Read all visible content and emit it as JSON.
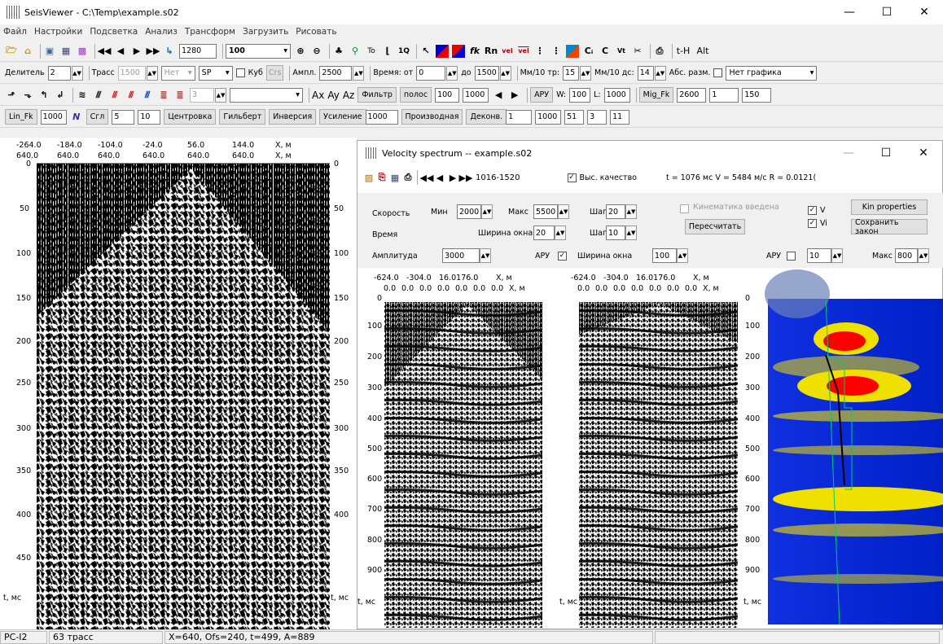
{
  "window": {
    "title": "SeisViewer - C:\\Temp\\example.s02"
  },
  "menu": [
    "Файл",
    "Настройки",
    "Подсветка",
    "Анализ",
    "Трансформ",
    "Загрузить",
    "Рисовать"
  ],
  "toolbar1": {
    "trace_no": "1280",
    "zoom": "100",
    "letters": [
      "To",
      "1Q",
      "fk",
      "Rn",
      "vel",
      "vel",
      "Cᵢ",
      "C",
      "Alt"
    ],
    "tH": "t-H"
  },
  "toolbar2": {
    "divider_label": "Делитель",
    "divider": "2",
    "traces_label": "Трасс",
    "traces": "1500",
    "no_label": "Нет",
    "sp": "SP",
    "cube_label": "Куб",
    "crs": "Crs",
    "ampl_label": "Ампл.",
    "ampl": "2500",
    "time_from_label": "Время: от",
    "time_from": "0",
    "time_to_label": "до",
    "time_to": "1500",
    "mm_tr_label": "Мм/10 тр:",
    "mm_tr": "15",
    "mm_dc_label": "Мм/10 дс:",
    "mm_dc": "14",
    "abs_label": "Абс. разм.",
    "graph": "Нет графика"
  },
  "toolbar3": {
    "step": "3",
    "ax": "Ax",
    "ay": "Ay",
    "az": "Az",
    "filter": "Фильтр",
    "band": "полос",
    "f1": "100",
    "f2": "1000",
    "aru": "АРУ",
    "w_label": "W:",
    "w": "100",
    "l_label": "L:",
    "l": "1000",
    "mig": "Mig_Fk",
    "m1": "2600",
    "m2": "1",
    "m3": "150"
  },
  "toolbar4": {
    "linfk": "Lin_Fk",
    "lf": "1000",
    "slg": "Сгл",
    "s1": "5",
    "s2": "10",
    "center": "Центровка",
    "hilbert": "Гильберт",
    "invert": "Инверсия",
    "gain": "Усиление",
    "gain_val": "1000",
    "deriv": "Производная",
    "decon": "Деконв.",
    "d1": "1",
    "d2": "1000",
    "d3": "51",
    "d4": "3",
    "d5": "11"
  },
  "left_plot": {
    "x_ticks": [
      "-264.0",
      "-184.0",
      "-104.0",
      "-24.0",
      "56.0",
      "144.0"
    ],
    "x_ticks2": [
      "640.0",
      "640.0",
      "640.0",
      "640.0",
      "640.0",
      "640.0"
    ],
    "x_unit": "X, м",
    "y_ticks": [
      "0",
      "50",
      "100",
      "150",
      "200",
      "250",
      "300",
      "350",
      "400",
      "450"
    ],
    "y_unit": "t, мс"
  },
  "velocity": {
    "title": "Velocity spectrum -- example.s02",
    "range": "1016-1520",
    "hq_label": "Выс. качество",
    "hq": true,
    "readout": "t = 1076 мс   V = 5484 м/с  R = 0.0121(",
    "speed_label": "Скорость",
    "min_label": "Мин",
    "min": "2000",
    "max_label": "Макс",
    "max": "5500",
    "step_label": "Шаг",
    "step": "20",
    "time_label": "Время",
    "winw_label": "Ширина окна",
    "winw": "20",
    "step2": "10",
    "amp_label": "Амплитуда",
    "amp": "3000",
    "aru_label": "АРУ",
    "aru": true,
    "winw2": "100",
    "kin_label": "Кинематика введена",
    "recalc": "Пересчитать",
    "v_label": "V",
    "vi_label": "Vi",
    "kin_props": "Kin properties",
    "save_law": "Сохранить закон",
    "aru2_label": "АРУ",
    "aru2": "10",
    "max2_label": "Макс",
    "max2": "800",
    "gather_x": [
      "-624.0",
      "-304.0",
      "16.0176.0"
    ],
    "gather_x2": [
      "0.0",
      "0.0",
      "0.0",
      "0.0",
      "0.0",
      "0.0",
      "0.0"
    ],
    "x_unit": "X, м",
    "y_ticks": [
      "0",
      "100",
      "200",
      "300",
      "400",
      "500",
      "600",
      "700",
      "800",
      "900"
    ],
    "y_unit": "t, мс"
  },
  "status": {
    "name": "PC-I2",
    "traces": "63 трасс",
    "cursor": "X=640, Ofs=240, t=499, A=889"
  }
}
